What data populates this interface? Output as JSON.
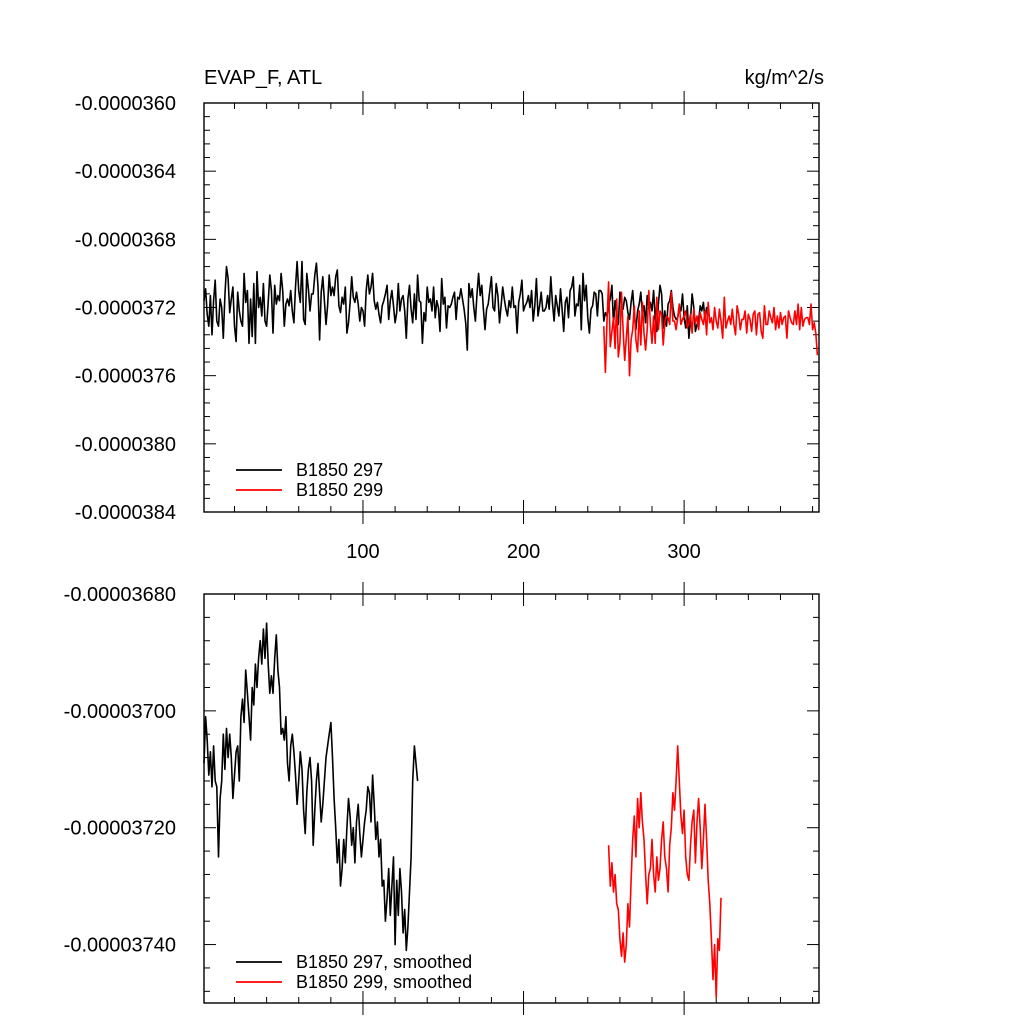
{
  "chart_data": [
    {
      "type": "line",
      "title_left": "EVAP_F, ATL",
      "title_right": "kg/m^2/s",
      "xlabel": "",
      "ylabel": "",
      "xlim": [
        1,
        384
      ],
      "ylim": [
        -3.84e-05,
        -3.6e-05
      ],
      "yticks": [
        -3.6e-05,
        -3.64e-05,
        -3.68e-05,
        -3.72e-05,
        -3.76e-05,
        -3.8e-05,
        -3.84e-05
      ],
      "ytick_labels": [
        "-0.0000360",
        "-0.0000364",
        "-0.0000368",
        "-0.0000372",
        "-0.0000376",
        "-0.0000380",
        "-0.0000384"
      ],
      "xticks": [
        100,
        200,
        300
      ],
      "xtick_labels": [
        "100",
        "200",
        "300"
      ],
      "grid": false,
      "legend_position": "bottom-left",
      "series": [
        {
          "name": "B1850 297",
          "color": "#000000",
          "x_start": 1,
          "values": [
            -3.716e-05,
            -3.709e-05,
            -3.724e-05,
            -3.731e-05,
            -3.713e-05,
            -3.736e-05,
            -3.716e-05,
            -3.704e-05,
            -3.728e-05,
            -3.731e-05,
            -3.715e-05,
            -3.72e-05,
            -3.738e-05,
            -3.713e-05,
            -3.696e-05,
            -3.703e-05,
            -3.723e-05,
            -3.715e-05,
            -3.708e-05,
            -3.731e-05,
            -3.74e-05,
            -3.711e-05,
            -3.722e-05,
            -3.728e-05,
            -3.731e-05,
            -3.7e-05,
            -3.717e-05,
            -3.71e-05,
            -3.741e-05,
            -3.715e-05,
            -3.737e-05,
            -3.706e-05,
            -3.741e-05,
            -3.699e-05,
            -3.72e-05,
            -3.714e-05,
            -3.725e-05,
            -3.706e-05,
            -3.728e-05,
            -3.731e-05,
            -3.717e-05,
            -3.701e-05,
            -3.71e-05,
            -3.735e-05,
            -3.707e-05,
            -3.718e-05,
            -3.713e-05,
            -3.716e-05,
            -3.7e-05,
            -3.71e-05,
            -3.731e-05,
            -3.718e-05,
            -3.715e-05,
            -3.719e-05,
            -3.71e-05,
            -3.722e-05,
            -3.729e-05,
            -3.708e-05,
            -3.693e-05,
            -3.71e-05,
            -3.717e-05,
            -3.693e-05,
            -3.727e-05,
            -3.73e-05,
            -3.7e-05,
            -3.709e-05,
            -3.722e-05,
            -3.712e-05,
            -3.712e-05,
            -3.701e-05,
            -3.694e-05,
            -3.708e-05,
            -3.739e-05,
            -3.711e-05,
            -3.702e-05,
            -3.716e-05,
            -3.73e-05,
            -3.719e-05,
            -3.701e-05,
            -3.713e-05,
            -3.708e-05,
            -3.713e-05,
            -3.702e-05,
            -3.698e-05,
            -3.719e-05,
            -3.723e-05,
            -3.714e-05,
            -3.718e-05,
            -3.708e-05,
            -3.735e-05,
            -3.729e-05,
            -3.717e-05,
            -3.702e-05,
            -3.714e-05,
            -3.717e-05,
            -3.711e-05,
            -3.718e-05,
            -3.728e-05,
            -3.72e-05,
            -3.722e-05,
            -3.731e-05,
            -3.71e-05,
            -3.701e-05,
            -3.712e-05,
            -3.708e-05,
            -3.7e-05,
            -3.716e-05,
            -3.721e-05,
            -3.717e-05,
            -3.724e-05,
            -3.729e-05,
            -3.719e-05,
            -3.716e-05,
            -3.712e-05,
            -3.707e-05,
            -3.727e-05,
            -3.716e-05,
            -3.71e-05,
            -3.719e-05,
            -3.729e-05,
            -3.723e-05,
            -3.706e-05,
            -3.722e-05,
            -3.715e-05,
            -3.713e-05,
            -3.722e-05,
            -3.738e-05,
            -3.715e-05,
            -3.707e-05,
            -3.721e-05,
            -3.729e-05,
            -3.712e-05,
            -3.727e-05,
            -3.701e-05,
            -3.716e-05,
            -3.717e-05,
            -3.741e-05,
            -3.723e-05,
            -3.728e-05,
            -3.708e-05,
            -3.717e-05,
            -3.715e-05,
            -3.722e-05,
            -3.708e-05,
            -3.726e-05,
            -3.716e-05,
            -3.72e-05,
            -3.734e-05,
            -3.703e-05,
            -3.718e-05,
            -3.714e-05,
            -3.732e-05,
            -3.719e-05,
            -3.72e-05,
            -3.718e-05,
            -3.714e-05,
            -3.711e-05,
            -3.727e-05,
            -3.714e-05,
            -3.715e-05,
            -3.709e-05,
            -3.715e-05,
            -3.721e-05,
            -3.729e-05,
            -3.745e-05,
            -3.706e-05,
            -3.714e-05,
            -3.709e-05,
            -3.72e-05,
            -3.728e-05,
            -3.712e-05,
            -3.7e-05,
            -3.713e-05,
            -3.707e-05,
            -3.721e-05,
            -3.733e-05,
            -3.721e-05,
            -3.718e-05,
            -3.71e-05,
            -3.702e-05,
            -3.72e-05,
            -3.722e-05,
            -3.706e-05,
            -3.713e-05,
            -3.729e-05,
            -3.719e-05,
            -3.708e-05,
            -3.715e-05,
            -3.721e-05,
            -3.725e-05,
            -3.716e-05,
            -3.72e-05,
            -3.708e-05,
            -3.72e-05,
            -3.719e-05,
            -3.735e-05,
            -3.717e-05,
            -3.712e-05,
            -3.704e-05,
            -3.722e-05,
            -3.719e-05,
            -3.717e-05,
            -3.713e-05,
            -3.72e-05,
            -3.71e-05,
            -3.728e-05,
            -3.719e-05,
            -3.703e-05,
            -3.725e-05,
            -3.719e-05,
            -3.711e-05,
            -3.722e-05,
            -3.722e-05,
            -3.72e-05,
            -3.713e-05,
            -3.721e-05,
            -3.702e-05,
            -3.717e-05,
            -3.728e-05,
            -3.713e-05,
            -3.719e-05,
            -3.725e-05,
            -3.709e-05,
            -3.721e-05,
            -3.734e-05,
            -3.717e-05,
            -3.714e-05,
            -3.726e-05,
            -3.71e-05,
            -3.708e-05,
            -3.702e-05,
            -3.725e-05,
            -3.718e-05,
            -3.719e-05,
            -3.707e-05,
            -3.733e-05,
            -3.7e-05,
            -3.716e-05,
            -3.707e-05,
            -3.726e-05,
            -3.735e-05,
            -3.721e-05,
            -3.719e-05,
            -3.711e-05,
            -3.712e-05,
            -3.725e-05,
            -3.71e-05,
            -3.71e-05,
            -3.712e-05,
            -3.728e-05,
            -3.723e-05,
            -3.725e-05,
            -3.718e-05,
            -3.715e-05,
            -3.707e-05,
            -3.73e-05,
            -3.716e-05,
            -3.724e-05,
            -3.73e-05,
            -3.711e-05,
            -3.719e-05,
            -3.721e-05,
            -3.714e-05,
            -3.716e-05,
            -3.723e-05,
            -3.727e-05,
            -3.717e-05,
            -3.71e-05,
            -3.724e-05,
            -3.733e-05,
            -3.722e-05,
            -3.718e-05,
            -3.711e-05,
            -3.724e-05,
            -3.719e-05,
            -3.729e-05,
            -3.713e-05,
            -3.717e-05,
            -3.717e-05,
            -3.722e-05,
            -3.71e-05,
            -3.726e-05,
            -3.734e-05,
            -3.718e-05,
            -3.707e-05,
            -3.712e-05,
            -3.732e-05,
            -3.722e-05,
            -3.731e-05,
            -3.718e-05,
            -3.716e-05,
            -3.71e-05,
            -3.72e-05,
            -3.725e-05,
            -3.727e-05,
            -3.726e-05,
            -3.72e-05,
            -3.722e-05,
            -3.712e-05,
            -3.726e-05,
            -3.732e-05,
            -3.719e-05,
            -3.738e-05,
            -3.727e-05,
            -3.712e-05,
            -3.72e-05,
            -3.734e-05,
            -3.73e-05,
            -3.728e-05,
            -3.719e-05,
            -3.722e-05,
            -3.717e-05,
            -3.727e-05,
            -3.72e-05,
            -3.723e-05
          ]
        },
        {
          "name": "B1850 299",
          "color": "#ff0000",
          "x_start": 250,
          "values": [
            -3.731e-05,
            -3.758e-05,
            -3.728e-05,
            -3.705e-05,
            -3.743e-05,
            -3.734e-05,
            -3.726e-05,
            -3.744e-05,
            -3.715e-05,
            -3.749e-05,
            -3.741e-05,
            -3.711e-05,
            -3.733e-05,
            -3.751e-05,
            -3.738e-05,
            -3.725e-05,
            -3.76e-05,
            -3.739e-05,
            -3.733e-05,
            -3.719e-05,
            -3.739e-05,
            -3.746e-05,
            -3.722e-05,
            -3.742e-05,
            -3.717e-05,
            -3.735e-05,
            -3.745e-05,
            -3.733e-05,
            -3.71e-05,
            -3.73e-05,
            -3.741e-05,
            -3.725e-05,
            -3.741e-05,
            -3.714e-05,
            -3.733e-05,
            -3.722e-05,
            -3.724e-05,
            -3.742e-05,
            -3.729e-05,
            -3.725e-05,
            -3.726e-05,
            -3.73e-05,
            -3.711e-05,
            -3.728e-05,
            -3.728e-05,
            -3.733e-05,
            -3.726e-05,
            -3.718e-05,
            -3.73e-05,
            -3.727e-05,
            -3.725e-05,
            -3.722e-05,
            -3.732e-05,
            -3.729e-05,
            -3.724e-05,
            -3.735e-05,
            -3.721e-05,
            -3.729e-05,
            -3.725e-05,
            -3.733e-05,
            -3.723e-05,
            -3.727e-05,
            -3.73e-05,
            -3.722e-05,
            -3.736e-05,
            -3.717e-05,
            -3.729e-05,
            -3.726e-05,
            -3.733e-05,
            -3.72e-05,
            -3.728e-05,
            -3.732e-05,
            -3.721e-05,
            -3.728e-05,
            -3.738e-05,
            -3.714e-05,
            -3.732e-05,
            -3.728e-05,
            -3.725e-05,
            -3.73e-05,
            -3.721e-05,
            -3.73e-05,
            -3.736e-05,
            -3.719e-05,
            -3.724e-05,
            -3.733e-05,
            -3.727e-05,
            -3.727e-05,
            -3.722e-05,
            -3.735e-05,
            -3.724e-05,
            -3.727e-05,
            -3.734e-05,
            -3.724e-05,
            -3.722e-05,
            -3.736e-05,
            -3.724e-05,
            -3.723e-05,
            -3.734e-05,
            -3.738e-05,
            -3.719e-05,
            -3.73e-05,
            -3.73e-05,
            -3.722e-05,
            -3.726e-05,
            -3.729e-05,
            -3.72e-05,
            -3.733e-05,
            -3.725e-05,
            -3.732e-05,
            -3.723e-05,
            -3.73e-05,
            -3.726e-05,
            -3.725e-05,
            -3.738e-05,
            -3.722e-05,
            -3.726e-05,
            -3.729e-05,
            -3.73e-05,
            -3.722e-05,
            -3.73e-05,
            -3.718e-05,
            -3.733e-05,
            -3.72e-05,
            -3.731e-05,
            -3.727e-05,
            -3.726e-05,
            -3.726e-05,
            -3.73e-05,
            -3.718e-05,
            -3.733e-05,
            -3.729e-05,
            -3.735e-05,
            -3.748e-05
          ]
        }
      ]
    },
    {
      "type": "line",
      "xlim": [
        1,
        384
      ],
      "ylim": [
        -3.75e-05,
        -3.68e-05
      ],
      "yticks": [
        -3.68e-05,
        -3.7e-05,
        -3.72e-05,
        -3.74e-05
      ],
      "ytick_labels": [
        "-0.00003680",
        "-0.00003700",
        "-0.00003720",
        "-0.00003740"
      ],
      "xticks": [
        100,
        200,
        300
      ],
      "xtick_labels": [],
      "grid": false,
      "legend_position": "bottom-left",
      "series": [
        {
          "name": "B1850 297, smoothed",
          "color": "#000000",
          "x_start": 1,
          "values": [
            -3.709e-05,
            -3.701e-05,
            -3.705e-05,
            -3.711e-05,
            -3.707e-05,
            -3.713e-05,
            -3.706e-05,
            -3.712e-05,
            -3.713e-05,
            -3.725e-05,
            -3.715e-05,
            -3.712e-05,
            -3.704e-05,
            -3.71e-05,
            -3.703e-05,
            -3.708e-05,
            -3.704e-05,
            -3.708e-05,
            -3.715e-05,
            -3.711e-05,
            -3.707e-05,
            -3.706e-05,
            -3.712e-05,
            -3.701e-05,
            -3.698e-05,
            -3.702e-05,
            -3.693e-05,
            -3.697e-05,
            -3.701e-05,
            -3.705e-05,
            -3.696e-05,
            -3.699e-05,
            -3.692e-05,
            -3.696e-05,
            -3.691e-05,
            -3.688e-05,
            -3.692e-05,
            -3.686e-05,
            -3.691e-05,
            -3.685e-05,
            -3.692e-05,
            -3.697e-05,
            -3.694e-05,
            -3.697e-05,
            -3.691e-05,
            -3.687e-05,
            -3.693e-05,
            -3.696e-05,
            -3.704e-05,
            -3.703e-05,
            -3.705e-05,
            -3.701e-05,
            -3.709e-05,
            -3.712e-05,
            -3.706e-05,
            -3.704e-05,
            -3.707e-05,
            -3.711e-05,
            -3.716e-05,
            -3.712e-05,
            -3.707e-05,
            -3.71e-05,
            -3.717e-05,
            -3.721e-05,
            -3.714e-05,
            -3.71e-05,
            -3.708e-05,
            -3.712e-05,
            -3.723e-05,
            -3.717e-05,
            -3.712e-05,
            -3.709e-05,
            -3.714e-05,
            -3.719e-05,
            -3.716e-05,
            -3.712e-05,
            -3.708e-05,
            -3.706e-05,
            -3.704e-05,
            -3.702e-05,
            -3.708e-05,
            -3.715e-05,
            -3.72e-05,
            -3.726e-05,
            -3.722e-05,
            -3.73e-05,
            -3.727e-05,
            -3.722e-05,
            -3.726e-05,
            -3.72e-05,
            -3.715e-05,
            -3.718e-05,
            -3.723e-05,
            -3.72e-05,
            -3.726e-05,
            -3.719e-05,
            -3.716e-05,
            -3.721e-05,
            -3.725e-05,
            -3.722e-05,
            -3.719e-05,
            -3.717e-05,
            -3.713e-05,
            -3.714e-05,
            -3.719e-05,
            -3.711e-05,
            -3.716e-05,
            -3.722e-05,
            -3.719e-05,
            -3.725e-05,
            -3.722e-05,
            -3.73e-05,
            -3.729e-05,
            -3.736e-05,
            -3.732e-05,
            -3.727e-05,
            -3.735e-05,
            -3.73e-05,
            -3.725e-05,
            -3.74e-05,
            -3.729e-05,
            -3.735e-05,
            -3.727e-05,
            -3.731e-05,
            -3.738e-05,
            -3.734e-05,
            -3.741e-05,
            -3.737e-05,
            -3.731e-05,
            -3.725e-05,
            -3.712e-05,
            -3.706e-05,
            -3.709e-05,
            -3.712e-05
          ]
        },
        {
          "name": "B1850 299, smoothed",
          "color": "#ff0000",
          "x_start": 253,
          "values": [
            -3.723e-05,
            -3.73e-05,
            -3.726e-05,
            -3.731e-05,
            -3.728e-05,
            -3.733e-05,
            -3.734e-05,
            -3.739e-05,
            -3.742e-05,
            -3.738e-05,
            -3.743e-05,
            -3.74e-05,
            -3.733e-05,
            -3.737e-05,
            -3.729e-05,
            -3.722e-05,
            -3.718e-05,
            -3.725e-05,
            -3.715e-05,
            -3.72e-05,
            -3.714e-05,
            -3.719e-05,
            -3.722e-05,
            -3.728e-05,
            -3.733e-05,
            -3.728e-05,
            -3.727e-05,
            -3.722e-05,
            -3.728e-05,
            -3.731e-05,
            -3.725e-05,
            -3.729e-05,
            -3.727e-05,
            -3.722e-05,
            -3.719e-05,
            -3.725e-05,
            -3.727e-05,
            -3.731e-05,
            -3.723e-05,
            -3.72e-05,
            -3.714e-05,
            -3.717e-05,
            -3.712e-05,
            -3.706e-05,
            -3.712e-05,
            -3.718e-05,
            -3.721e-05,
            -3.717e-05,
            -3.725e-05,
            -3.728e-05,
            -3.729e-05,
            -3.723e-05,
            -3.719e-05,
            -3.717e-05,
            -3.726e-05,
            -3.719e-05,
            -3.715e-05,
            -3.72e-05,
            -3.727e-05,
            -3.722e-05,
            -3.716e-05,
            -3.722e-05,
            -3.729e-05,
            -3.733e-05,
            -3.739e-05,
            -3.746e-05,
            -3.74e-05,
            -3.749e-05,
            -3.739e-05,
            -3.741e-05,
            -3.732e-05
          ]
        }
      ]
    }
  ]
}
